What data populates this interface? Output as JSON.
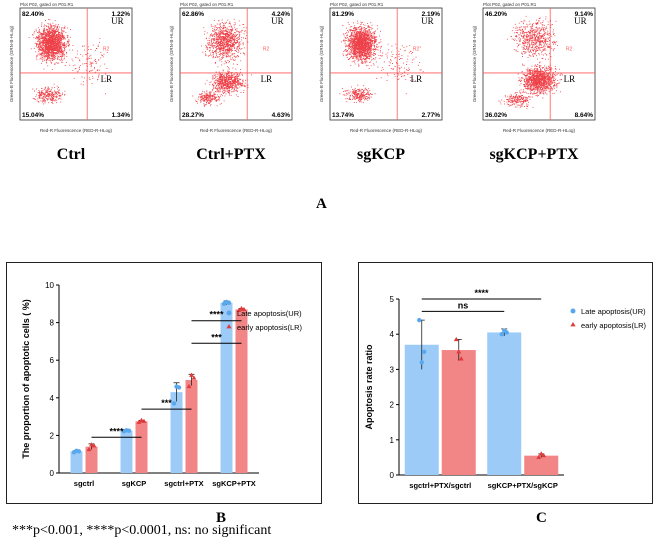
{
  "flow_plots": [
    {
      "header": "Plot P02, gated on P01.R1",
      "label": "Ctrl",
      "ul": "82.40%",
      "ur": "1.22%",
      "ll": "15.04%",
      "lr": "1.34%",
      "quad_ur": "UR",
      "quad_lr": "LR",
      "region": "R2",
      "x_axis": "Red-R Fluorescence (RED-R-HLog)",
      "y_axis": "Green-B Fluorescence (GRN-B-HLog)",
      "dist": "upper-left",
      "colors": {
        "dots": "#e8000b",
        "lines": "#ff5a5a"
      }
    },
    {
      "header": "Plot P02, gated on P01.R1",
      "label": "Ctrl+PTX",
      "ul": "62.86%",
      "ur": "4.24%",
      "ll": "28.27%",
      "lr": "4.63%",
      "quad_ur": "UR",
      "quad_lr": "LR",
      "region": "R2",
      "x_axis": "Red-R Fluorescence (RED-R-HLog)",
      "y_axis": "Green-B Fluorescence (GRN-B-HLog)",
      "dist": "split",
      "colors": {
        "dots": "#e8000b",
        "lines": "#ff5a5a"
      }
    },
    {
      "header": "Plot P02, gated on P01.R1",
      "label": "sgKCP",
      "ul": "81.29%",
      "ur": "2.19%",
      "ll": "13.74%",
      "lr": "2.77%",
      "quad_ur": "UR",
      "quad_lr": "LR",
      "region": "R2",
      "x_axis": "Red-R Fluorescence (RED-R-HLog)",
      "y_axis": "Green-B Fluorescence (GRN-B-HLog)",
      "dist": "upper-left",
      "colors": {
        "dots": "#e8000b",
        "lines": "#ff5a5a"
      }
    },
    {
      "header": "Plot P02, gated on P01.R1",
      "label": "sgKCP+PTX",
      "ul": "46.20%",
      "ur": "9.14%",
      "ll": "36.02%",
      "lr": "8.64%",
      "quad_ur": "UR",
      "quad_lr": "LR",
      "region": "R2",
      "x_axis": "Red-R Fluorescence (RED-R-HLog)",
      "y_axis": "Green-B Fluorescence (GRN-B-HLog)",
      "dist": "lower",
      "colors": {
        "dots": "#e8000b",
        "lines": "#ff5a5a"
      }
    }
  ],
  "panel_letters": {
    "a": "A",
    "b": "B",
    "c": "C"
  },
  "footnote": "***p<0.001, ****p<0.0001, ns: no significant",
  "colors": {
    "late": "#9ccbf8",
    "late_point": "#59a8ee",
    "early": "#f28585",
    "early_point": "#e13a3a",
    "error": "#222222"
  },
  "chart_data": [
    {
      "type": "bar",
      "panel": "B",
      "ylabel": "The proportion of apoptotic cells ( %)",
      "categories": [
        "sgctrl",
        "sgKCP",
        "sgctrl+PTX",
        "sgKCP+PTX"
      ],
      "ylim": [
        0,
        10
      ],
      "series": [
        {
          "name": "Late apoptosis(UR)",
          "values": [
            1.15,
            2.25,
            4.3,
            9.05
          ],
          "errors": [
            0.05,
            0.05,
            0.5,
            0.1
          ],
          "points": [
            [
              1.1,
              1.18,
              1.15
            ],
            [
              2.22,
              2.27,
              2.25
            ],
            [
              3.7,
              4.6,
              4.55
            ],
            [
              9.0,
              9.1,
              9.05
            ]
          ]
        },
        {
          "name": "early apoptosis(LR)",
          "values": [
            1.4,
            2.75,
            4.95,
            8.7
          ],
          "errors": [
            0.15,
            0.05,
            0.3,
            0.05
          ],
          "points": [
            [
              1.25,
              1.5,
              1.45
            ],
            [
              2.7,
              2.8,
              2.75
            ],
            [
              4.6,
              5.2,
              5.05
            ],
            [
              8.65,
              8.75,
              8.7
            ]
          ]
        }
      ],
      "annotations": [
        {
          "text": "****",
          "from": 0,
          "to": 1,
          "y": 1.9
        },
        {
          "text": "***",
          "from": 1,
          "to": 2,
          "y": 3.4
        },
        {
          "text": "***",
          "from": 2,
          "to": 3,
          "y": 6.9
        },
        {
          "text": "****",
          "from": 2,
          "to": 3,
          "y": 8.1
        }
      ],
      "legend": "top-right"
    },
    {
      "type": "bar",
      "panel": "C",
      "ylabel": "Apoptosis rate ratio",
      "categories": [
        "sgctrl+PTX/sgctrl",
        "sgKCP+PTX/sgKCP"
      ],
      "ylim": [
        0,
        5
      ],
      "series": [
        {
          "name": "Late apoptosis(UR)",
          "values": [
            3.7,
            4.05
          ],
          "errors": [
            0.7,
            0.1
          ],
          "points": [
            [
              4.4,
              3.2,
              3.5
            ],
            [
              4.0,
              4.1,
              4.05
            ]
          ]
        },
        {
          "name": "early apoptosis(LR)",
          "values": [
            3.55,
            0.55
          ],
          "errors": [
            0.3,
            0.05
          ],
          "points": [
            [
              3.85,
              3.5,
              3.3
            ],
            [
              0.5,
              0.6,
              0.55
            ]
          ]
        }
      ],
      "annotations": [
        {
          "text": "ns",
          "from": 0,
          "to": 1,
          "y": 4.65,
          "mode": "late"
        },
        {
          "text": "****",
          "from": 0,
          "to": 1,
          "y": 5.0,
          "mode": "cross"
        }
      ],
      "legend": "top-right"
    }
  ]
}
